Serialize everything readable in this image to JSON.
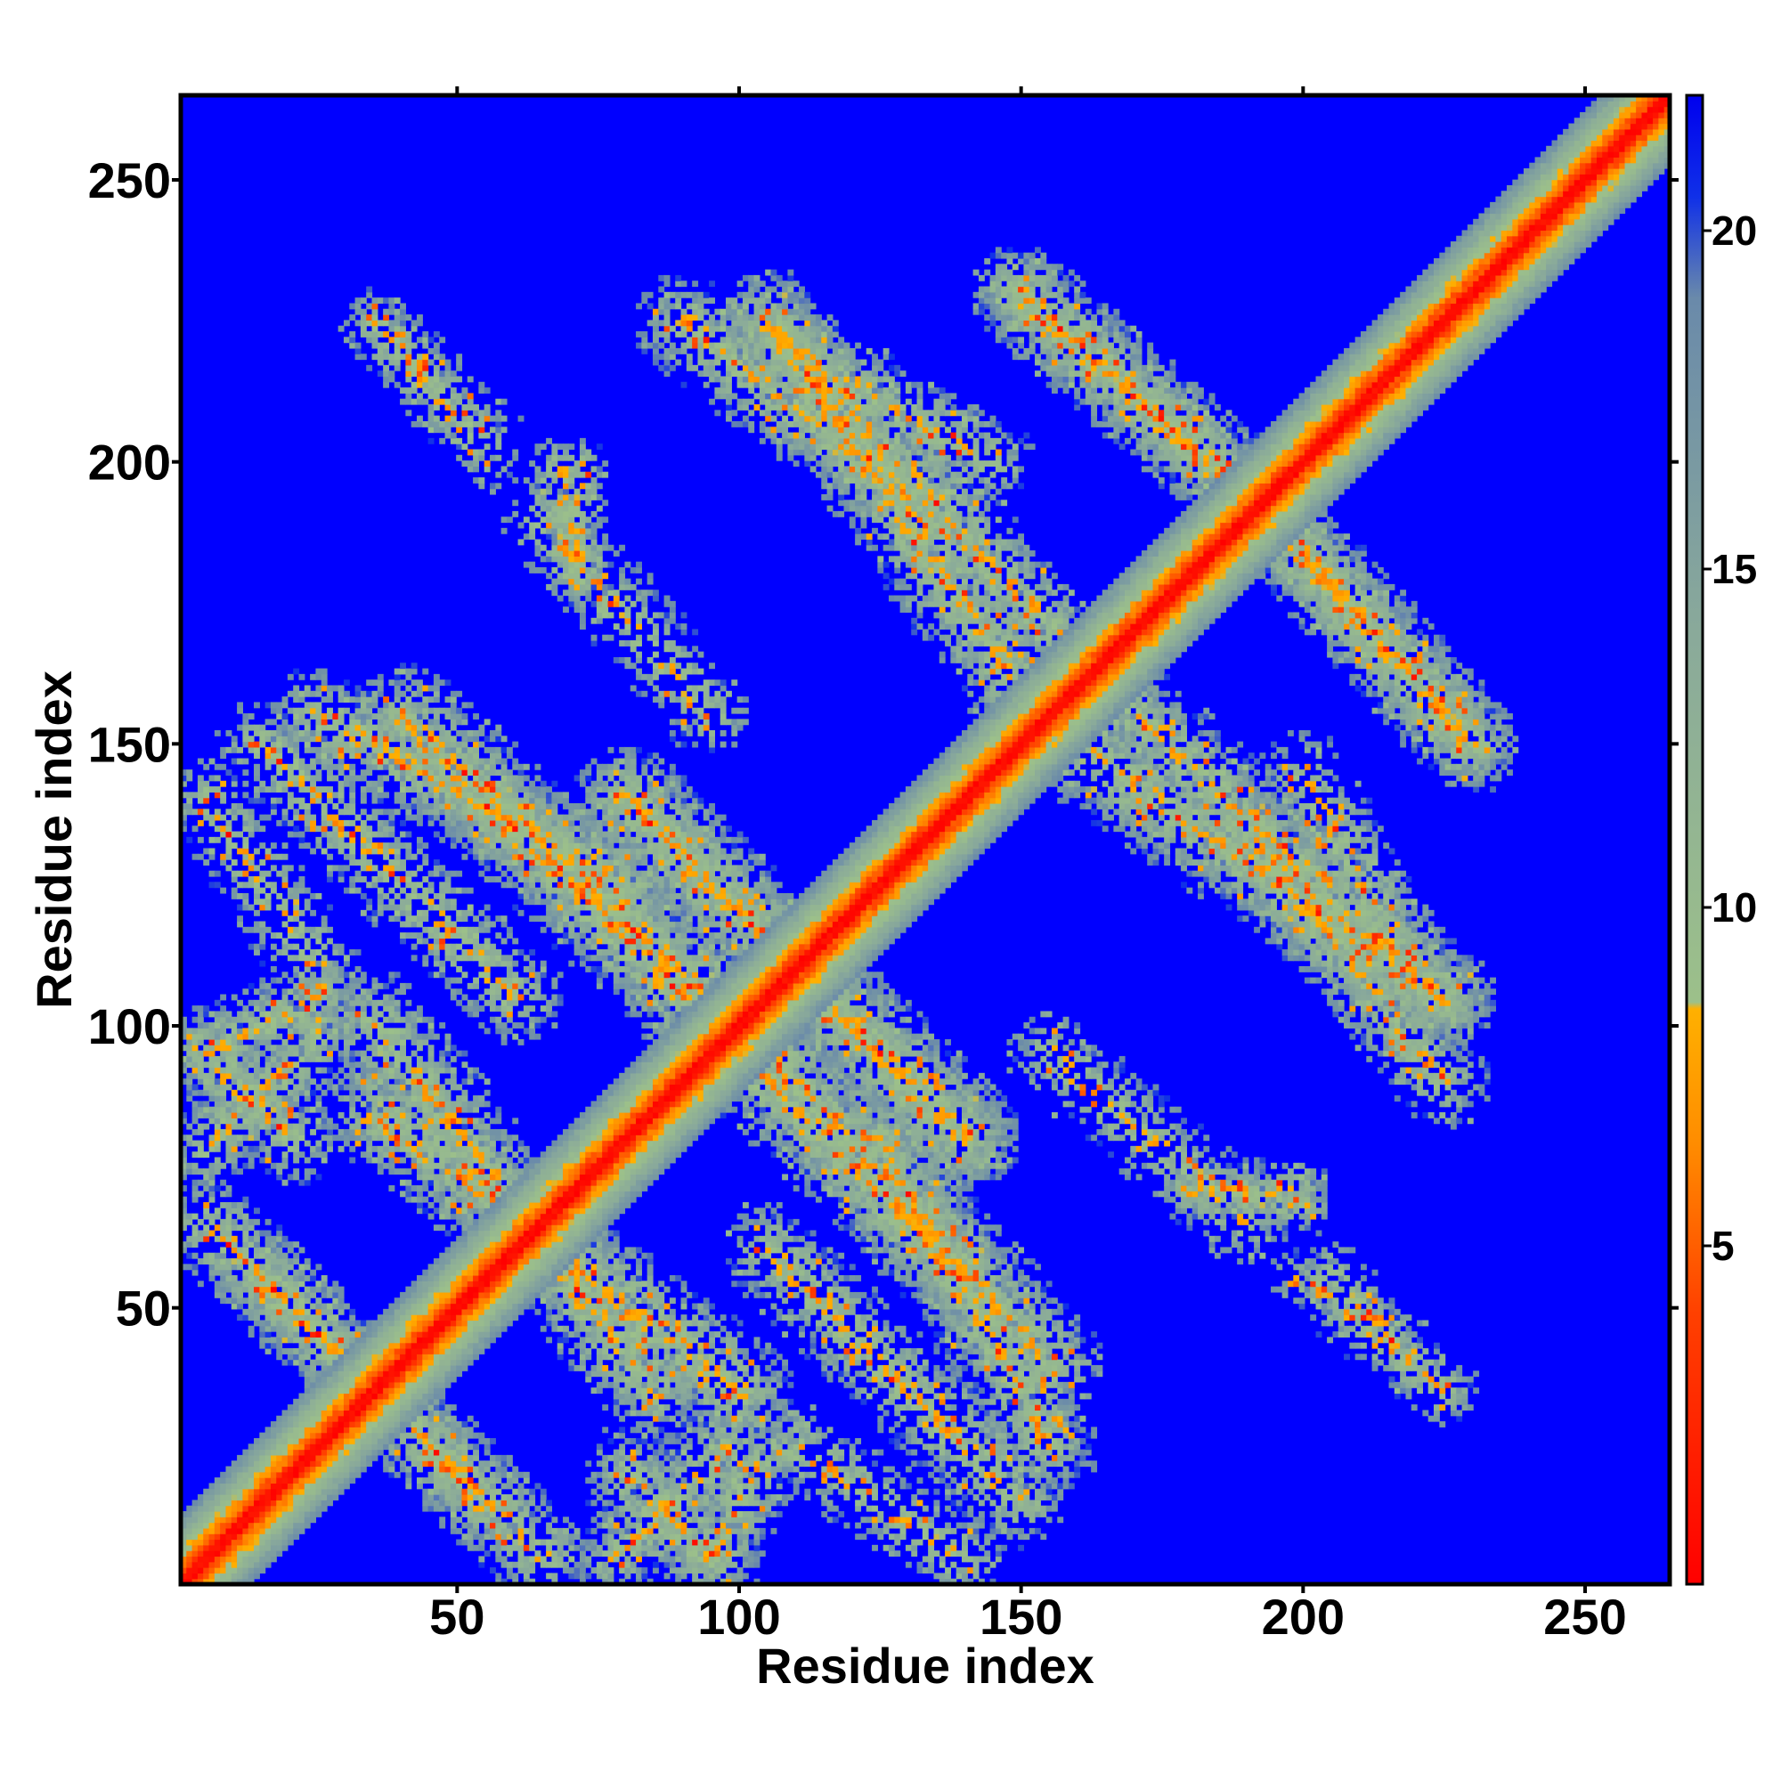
{
  "chart_data": {
    "type": "heatmap",
    "title": "",
    "xlabel": "Residue index",
    "ylabel": "Residue index",
    "xlim": [
      1,
      265
    ],
    "ylim": [
      1,
      265
    ],
    "xticks": [
      50,
      100,
      150,
      200,
      250
    ],
    "yticks": [
      50,
      100,
      150,
      200,
      250
    ],
    "colorbar": {
      "ticks": [
        5,
        10,
        15,
        20
      ],
      "range": [
        0,
        22
      ],
      "stops": [
        {
          "value": 0,
          "color": "#ff0000"
        },
        {
          "value": 4,
          "color": "#ff4000"
        },
        {
          "value": 6.5,
          "color": "#ff8c00"
        },
        {
          "value": 8.5,
          "color": "#ffb000"
        },
        {
          "value": 8.6,
          "color": "#9cc08a"
        },
        {
          "value": 14,
          "color": "#8aaa9a"
        },
        {
          "value": 19,
          "color": "#6a8aaa"
        },
        {
          "value": 20.5,
          "color": "#1030e8"
        },
        {
          "value": 22,
          "color": "#0000ee"
        }
      ]
    },
    "background_color": "#0000ff",
    "contact_bands": [
      {
        "from": [
          5,
          95
        ],
        "to": [
          25,
          105
        ],
        "width": 8,
        "intensity": 0.8
      },
      {
        "from": [
          5,
          78
        ],
        "to": [
          25,
          98
        ],
        "width": 8,
        "intensity": 0.7
      },
      {
        "from": [
          15,
          150
        ],
        "to": [
          60,
          105
        ],
        "width": 9,
        "intensity": 0.7
      },
      {
        "from": [
          25,
          155
        ],
        "to": [
          80,
          125
        ],
        "width": 9,
        "intensity": 0.8
      },
      {
        "from": [
          35,
          100
        ],
        "to": [
          85,
          35
        ],
        "width": 10,
        "intensity": 0.8
      },
      {
        "from": [
          5,
          65
        ],
        "to": [
          55,
          15
        ],
        "width": 9,
        "intensity": 0.7
      },
      {
        "from": [
          55,
          140
        ],
        "to": [
          95,
          100
        ],
        "width": 10,
        "intensity": 0.8
      },
      {
        "from": [
          80,
          140
        ],
        "to": [
          140,
          80
        ],
        "width": 10,
        "intensity": 0.7
      },
      {
        "from": [
          105,
          95
        ],
        "to": [
          155,
          40
        ],
        "width": 10,
        "intensity": 0.8
      },
      {
        "from": [
          90,
          225
        ],
        "to": [
          135,
          190
        ],
        "width": 9,
        "intensity": 0.7
      },
      {
        "from": [
          105,
          225
        ],
        "to": [
          165,
          160
        ],
        "width": 9,
        "intensity": 0.8
      },
      {
        "from": [
          150,
          230
        ],
        "to": [
          195,
          190
        ],
        "width": 9,
        "intensity": 0.8
      },
      {
        "from": [
          160,
          150
        ],
        "to": [
          225,
          105
        ],
        "width": 10,
        "intensity": 0.8
      },
      {
        "from": [
          195,
          190
        ],
        "to": [
          230,
          150
        ],
        "width": 9,
        "intensity": 0.7
      },
      {
        "from": [
          200,
          145
        ],
        "to": [
          220,
          110
        ],
        "width": 8,
        "intensity": 0.6
      },
      {
        "from": [
          68,
          200
        ],
        "to": [
          72,
          180
        ],
        "width": 6,
        "intensity": 0.6
      },
      {
        "from": [
          180,
          70
        ],
        "to": [
          200,
          72
        ],
        "width": 5,
        "intensity": 0.6
      },
      {
        "from": [
          80,
          20
        ],
        "to": [
          95,
          5
        ],
        "width": 9,
        "intensity": 0.7
      },
      {
        "from": [
          110,
          25
        ],
        "to": [
          140,
          5
        ],
        "width": 8,
        "intensity": 0.5
      },
      {
        "from": [
          35,
          225
        ],
        "to": [
          55,
          205
        ],
        "width": 7,
        "intensity": 0.4
      },
      {
        "from": [
          155,
          95
        ],
        "to": [
          190,
          65
        ],
        "width": 8,
        "intensity": 0.4
      },
      {
        "from": [
          200,
          55
        ],
        "to": [
          225,
          35
        ],
        "width": 6,
        "intensity": 0.4
      }
    ]
  }
}
